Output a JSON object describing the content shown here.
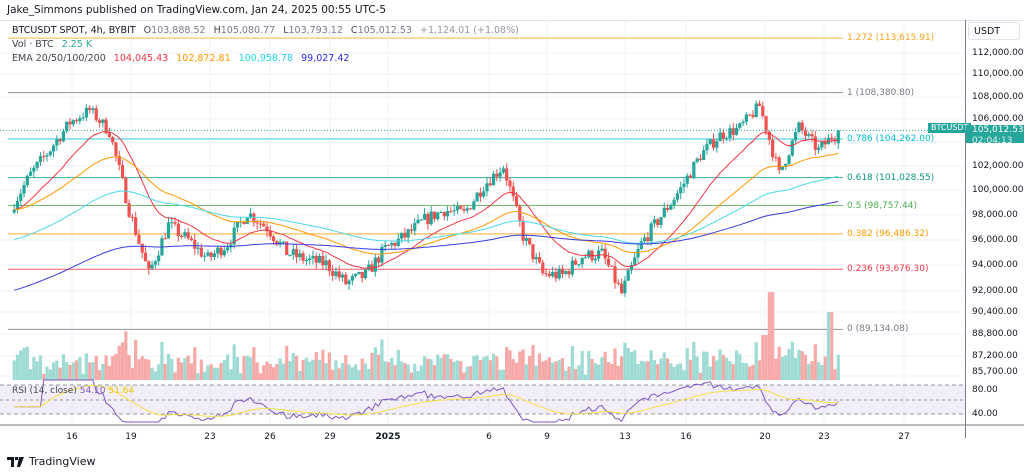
{
  "publisher": "Jake_Simmons published on TradingView.com, Jan 24, 2025 00:55 UTC-5",
  "legend": {
    "symbol": "BTCUSDT SPOT, 4h, BYBIT",
    "o_label": "O",
    "o": "103,888.52",
    "h_label": "H",
    "h": "105,080.77",
    "l_label": "L",
    "l": "103,793.12",
    "c_label": "C",
    "c": "105,012.53",
    "change": "+1,124.01 (+1.08%)",
    "vol_label": "Vol · BTC",
    "vol": "2.25 K",
    "ema_label": "EMA 20/50/100/200",
    "ema20": "104,045.43",
    "ema50": "102,872.81",
    "ema100": "100,958.78",
    "ema200": "99,027.42"
  },
  "colors": {
    "up": "#26a69a",
    "down": "#ef5350",
    "ema20": "#f23645",
    "ema50": "#ff9800",
    "ema100": "#4dd9e8",
    "ema200": "#3a3adf",
    "rsi": "#7e57c2",
    "rsi_ma": "#f5e04a"
  },
  "price_axis": {
    "currency": "USDT",
    "labels": [
      "112,000.00",
      "110,000.00",
      "108,000.00",
      "106,000.00",
      "102,000.00",
      "100,000.00",
      "98,000.00",
      "96,000.00",
      "94,000.00",
      "92,000.00",
      "90,400.00",
      "88,800.00",
      "87,200.00",
      "85,700.00"
    ]
  },
  "current_price": {
    "symbol": "BTCUSDT",
    "price": "105,012.53",
    "countdown": "02:04:13"
  },
  "fib_levels": [
    {
      "label": "1.272 (113,615.91)",
      "value": 113615.91,
      "color": "#f7a21b"
    },
    {
      "label": "1 (108,380.80)",
      "value": 108380.8,
      "color": "#787b86"
    },
    {
      "label": "0.786 (104,262.00)",
      "value": 104262.0,
      "color": "#00bcd4"
    },
    {
      "label": "0.618 (101,028.55)",
      "value": 101028.55,
      "color": "#089981"
    },
    {
      "label": "0.5 (98,757.44)",
      "value": 98757.44,
      "color": "#4caf50"
    },
    {
      "label": "0.382 (96,486.32)",
      "value": 96486.32,
      "color": "#ff9800"
    },
    {
      "label": "0.236 (93,676.30)",
      "value": 93676.3,
      "color": "#f23645"
    },
    {
      "label": "0 (89,134.08)",
      "value": 89134.08,
      "color": "#787b86"
    }
  ],
  "rsi": {
    "label": "RSI (14, close)",
    "value": "54.10",
    "ma": "51.64",
    "levels": [
      "80.00",
      "40.00"
    ]
  },
  "dates": [
    {
      "t": "16"
    },
    {
      "t": "19"
    },
    {
      "t": "23"
    },
    {
      "t": "26"
    },
    {
      "t": "29"
    },
    {
      "t": "2025",
      "year": true
    },
    {
      "t": "6"
    },
    {
      "t": "9"
    },
    {
      "t": "13"
    },
    {
      "t": "16"
    },
    {
      "t": "20"
    },
    {
      "t": "23"
    },
    {
      "t": "27"
    }
  ],
  "footer": {
    "brand": "TradingView"
  },
  "chart_data": {
    "type": "candlestick",
    "timeframe": "4h",
    "note_series": "approximate daily closes",
    "dates": [
      "Dec 13",
      "Dec 14",
      "Dec 15",
      "Dec 16",
      "Dec 17",
      "Dec 18",
      "Dec 19",
      "Dec 20",
      "Dec 21",
      "Dec 22",
      "Dec 23",
      "Dec 24",
      "Dec 25",
      "Dec 26",
      "Dec 27",
      "Dec 28",
      "Dec 29",
      "Dec 30",
      "Dec 31",
      "Jan 1",
      "Jan 2",
      "Jan 3",
      "Jan 4",
      "Jan 5",
      "Jan 6",
      "Jan 7",
      "Jan 8",
      "Jan 9",
      "Jan 10",
      "Jan 11",
      "Jan 12",
      "Jan 13",
      "Jan 14",
      "Jan 15",
      "Jan 16",
      "Jan 17",
      "Jan 18",
      "Jan 19",
      "Jan 20",
      "Jan 21",
      "Jan 22",
      "Jan 23",
      "Jan 24"
    ],
    "closes": [
      98500,
      101300,
      103400,
      105700,
      106800,
      104900,
      98400,
      93300,
      97200,
      96000,
      94500,
      95700,
      98200,
      97000,
      95000,
      94400,
      94100,
      92600,
      93200,
      95300,
      96300,
      97600,
      98400,
      98100,
      100400,
      102000,
      96300,
      93300,
      93200,
      94700,
      94900,
      91800,
      95700,
      97900,
      100100,
      102900,
      104600,
      105200,
      107200,
      101300,
      105300,
      103300,
      105012.53
    ],
    "ylim": [
      85700,
      114500
    ]
  }
}
